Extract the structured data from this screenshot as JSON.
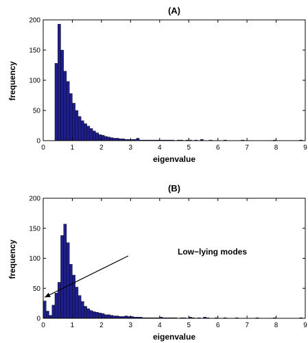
{
  "chart_data": [
    {
      "type": "bar",
      "title": "(A)",
      "xlabel": "eigenvalue",
      "ylabel": "frequency",
      "xlim": [
        0,
        9
      ],
      "ylim": [
        0,
        200
      ],
      "xticks": [
        "0",
        "1",
        "2",
        "3",
        "4",
        "5",
        "6",
        "7",
        "8",
        "9"
      ],
      "yticks": [
        "0",
        "50",
        "100",
        "150",
        "200"
      ],
      "bar_color": "#1f1f8c",
      "bin_width": 0.1,
      "x": [
        0.4,
        0.5,
        0.6,
        0.7,
        0.8,
        0.9,
        1.0,
        1.1,
        1.2,
        1.3,
        1.4,
        1.5,
        1.6,
        1.7,
        1.8,
        1.9,
        2.0,
        2.1,
        2.2,
        2.3,
        2.4,
        2.5,
        2.6,
        2.7,
        2.8,
        2.9,
        3.0,
        3.1,
        3.2,
        3.3,
        3.4,
        3.5,
        3.6,
        3.7,
        3.8,
        3.9,
        4.0,
        4.1,
        4.2,
        4.3,
        4.4,
        4.5,
        4.6,
        4.7,
        4.8,
        4.9,
        5.0,
        5.1,
        5.2,
        5.3,
        5.4,
        5.5,
        5.6,
        5.7,
        5.8,
        5.9,
        6.0,
        6.1,
        6.2,
        6.3,
        6.4,
        6.5,
        6.6,
        6.7,
        6.8,
        6.9,
        7.0,
        7.1,
        7.2,
        7.3,
        7.4,
        7.5,
        7.6,
        7.7,
        7.8,
        7.9,
        8.0,
        8.1,
        8.2,
        8.3,
        8.4,
        8.5,
        8.6,
        8.7,
        8.8
      ],
      "values": [
        128,
        193,
        150,
        115,
        98,
        78,
        62,
        50,
        40,
        33,
        28,
        24,
        20,
        16,
        13,
        10,
        9,
        7,
        6,
        5,
        4,
        4,
        3,
        3,
        2,
        2,
        2,
        2,
        4,
        1,
        1,
        1,
        1,
        1,
        1,
        1,
        1,
        1,
        1,
        1,
        1,
        0,
        1,
        1,
        0,
        1,
        1,
        0,
        1,
        0,
        2,
        0,
        0,
        1,
        0,
        0,
        0,
        0,
        1,
        0,
        0,
        0,
        0,
        0,
        1,
        0,
        0,
        0,
        0,
        0,
        0,
        0,
        0,
        0,
        0,
        1,
        0,
        0,
        0,
        0,
        0,
        0,
        0,
        0,
        1
      ]
    },
    {
      "type": "bar",
      "title": "(B)",
      "xlabel": "eigenvalue",
      "ylabel": "frequency",
      "xlim": [
        0,
        9
      ],
      "ylim": [
        0,
        200
      ],
      "xticks": [
        "0",
        "1",
        "2",
        "3",
        "4",
        "5",
        "6",
        "7",
        "8",
        "9"
      ],
      "yticks": [
        "0",
        "50",
        "100",
        "150",
        "200"
      ],
      "bar_color": "#1f1f8c",
      "bin_width": 0.1,
      "x": [
        0.0,
        0.1,
        0.2,
        0.3,
        0.4,
        0.5,
        0.6,
        0.7,
        0.8,
        0.9,
        1.0,
        1.1,
        1.2,
        1.3,
        1.4,
        1.5,
        1.6,
        1.7,
        1.8,
        1.9,
        2.0,
        2.1,
        2.2,
        2.3,
        2.4,
        2.5,
        2.6,
        2.7,
        2.8,
        2.9,
        3.0,
        3.1,
        3.2,
        3.3,
        3.4,
        3.5,
        3.6,
        3.7,
        3.8,
        3.9,
        4.0,
        4.1,
        4.2,
        4.3,
        4.4,
        4.5,
        4.6,
        4.7,
        4.8,
        4.9,
        5.0,
        5.1,
        5.2,
        5.3,
        5.4,
        5.5,
        5.6,
        5.7,
        5.8,
        5.9,
        6.0,
        6.1,
        6.2,
        6.3,
        6.4,
        6.5,
        6.6,
        6.7,
        6.8,
        6.9,
        7.0,
        7.1,
        7.2,
        7.3,
        7.4,
        7.5,
        7.6,
        7.7,
        7.8,
        7.9,
        8.0,
        8.1,
        8.2,
        8.3,
        8.4,
        8.5,
        8.6,
        8.7,
        8.8
      ],
      "values": [
        29,
        12,
        5,
        22,
        42,
        60,
        138,
        157,
        126,
        90,
        72,
        52,
        38,
        28,
        20,
        16,
        13,
        11,
        10,
        9,
        8,
        6,
        6,
        5,
        4,
        4,
        3,
        3,
        4,
        3,
        3,
        2,
        2,
        2,
        1,
        1,
        1,
        1,
        1,
        1,
        2,
        1,
        1,
        1,
        1,
        1,
        0,
        1,
        1,
        0,
        2,
        1,
        0,
        1,
        0,
        2,
        1,
        0,
        0,
        1,
        0,
        0,
        1,
        0,
        0,
        0,
        1,
        0,
        0,
        0,
        0,
        0,
        0,
        1,
        0,
        0,
        0,
        0,
        0,
        1,
        0,
        0,
        0,
        0,
        0,
        0,
        0,
        0,
        1
      ],
      "annotation": {
        "text": "Low−lying modes",
        "arrow_target": [
          0.05,
          35
        ]
      }
    }
  ]
}
